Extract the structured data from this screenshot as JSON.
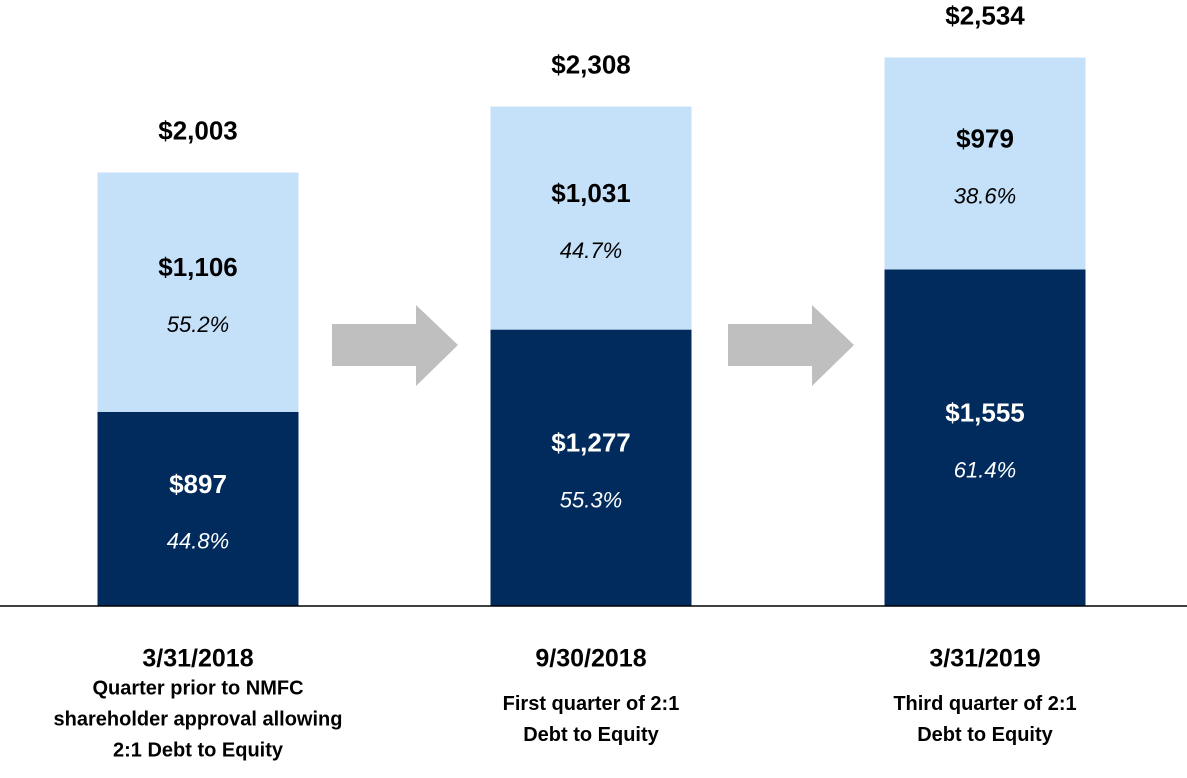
{
  "chart_data": {
    "type": "stacked_bar",
    "categories": [
      "3/31/2018",
      "9/30/2018",
      "3/31/2019"
    ],
    "descriptions": [
      [
        "Quarter prior to NMFC",
        "shareholder approval allowing",
        "2:1 Debt to Equity"
      ],
      [
        "First quarter of 2:1",
        "Debt to Equity"
      ],
      [
        "Third quarter of 2:1",
        "Debt to Equity"
      ]
    ],
    "series": [
      {
        "color": "#002b5c",
        "label_color": "#ffffff",
        "values": [
          897,
          1277,
          1555
        ],
        "value_labels": [
          "$897",
          "$1,277",
          "$1,555"
        ],
        "shares": [
          44.8,
          55.3,
          61.4
        ],
        "share_labels": [
          "44.8%",
          "55.3%",
          "61.4%"
        ]
      },
      {
        "color": "#c5e0f9",
        "label_color": "#000000",
        "values": [
          1106,
          1031,
          979
        ],
        "value_labels": [
          "$1,106",
          "$1,031",
          "$979"
        ],
        "shares": [
          55.2,
          44.7,
          38.6
        ],
        "share_labels": [
          "55.2%",
          "44.7%",
          "38.6%"
        ]
      }
    ],
    "totals": [
      2003,
      2308,
      2534
    ],
    "total_labels": [
      "$2,003",
      "$2,308",
      "$2,534"
    ],
    "ylim": [
      0,
      2800
    ]
  }
}
